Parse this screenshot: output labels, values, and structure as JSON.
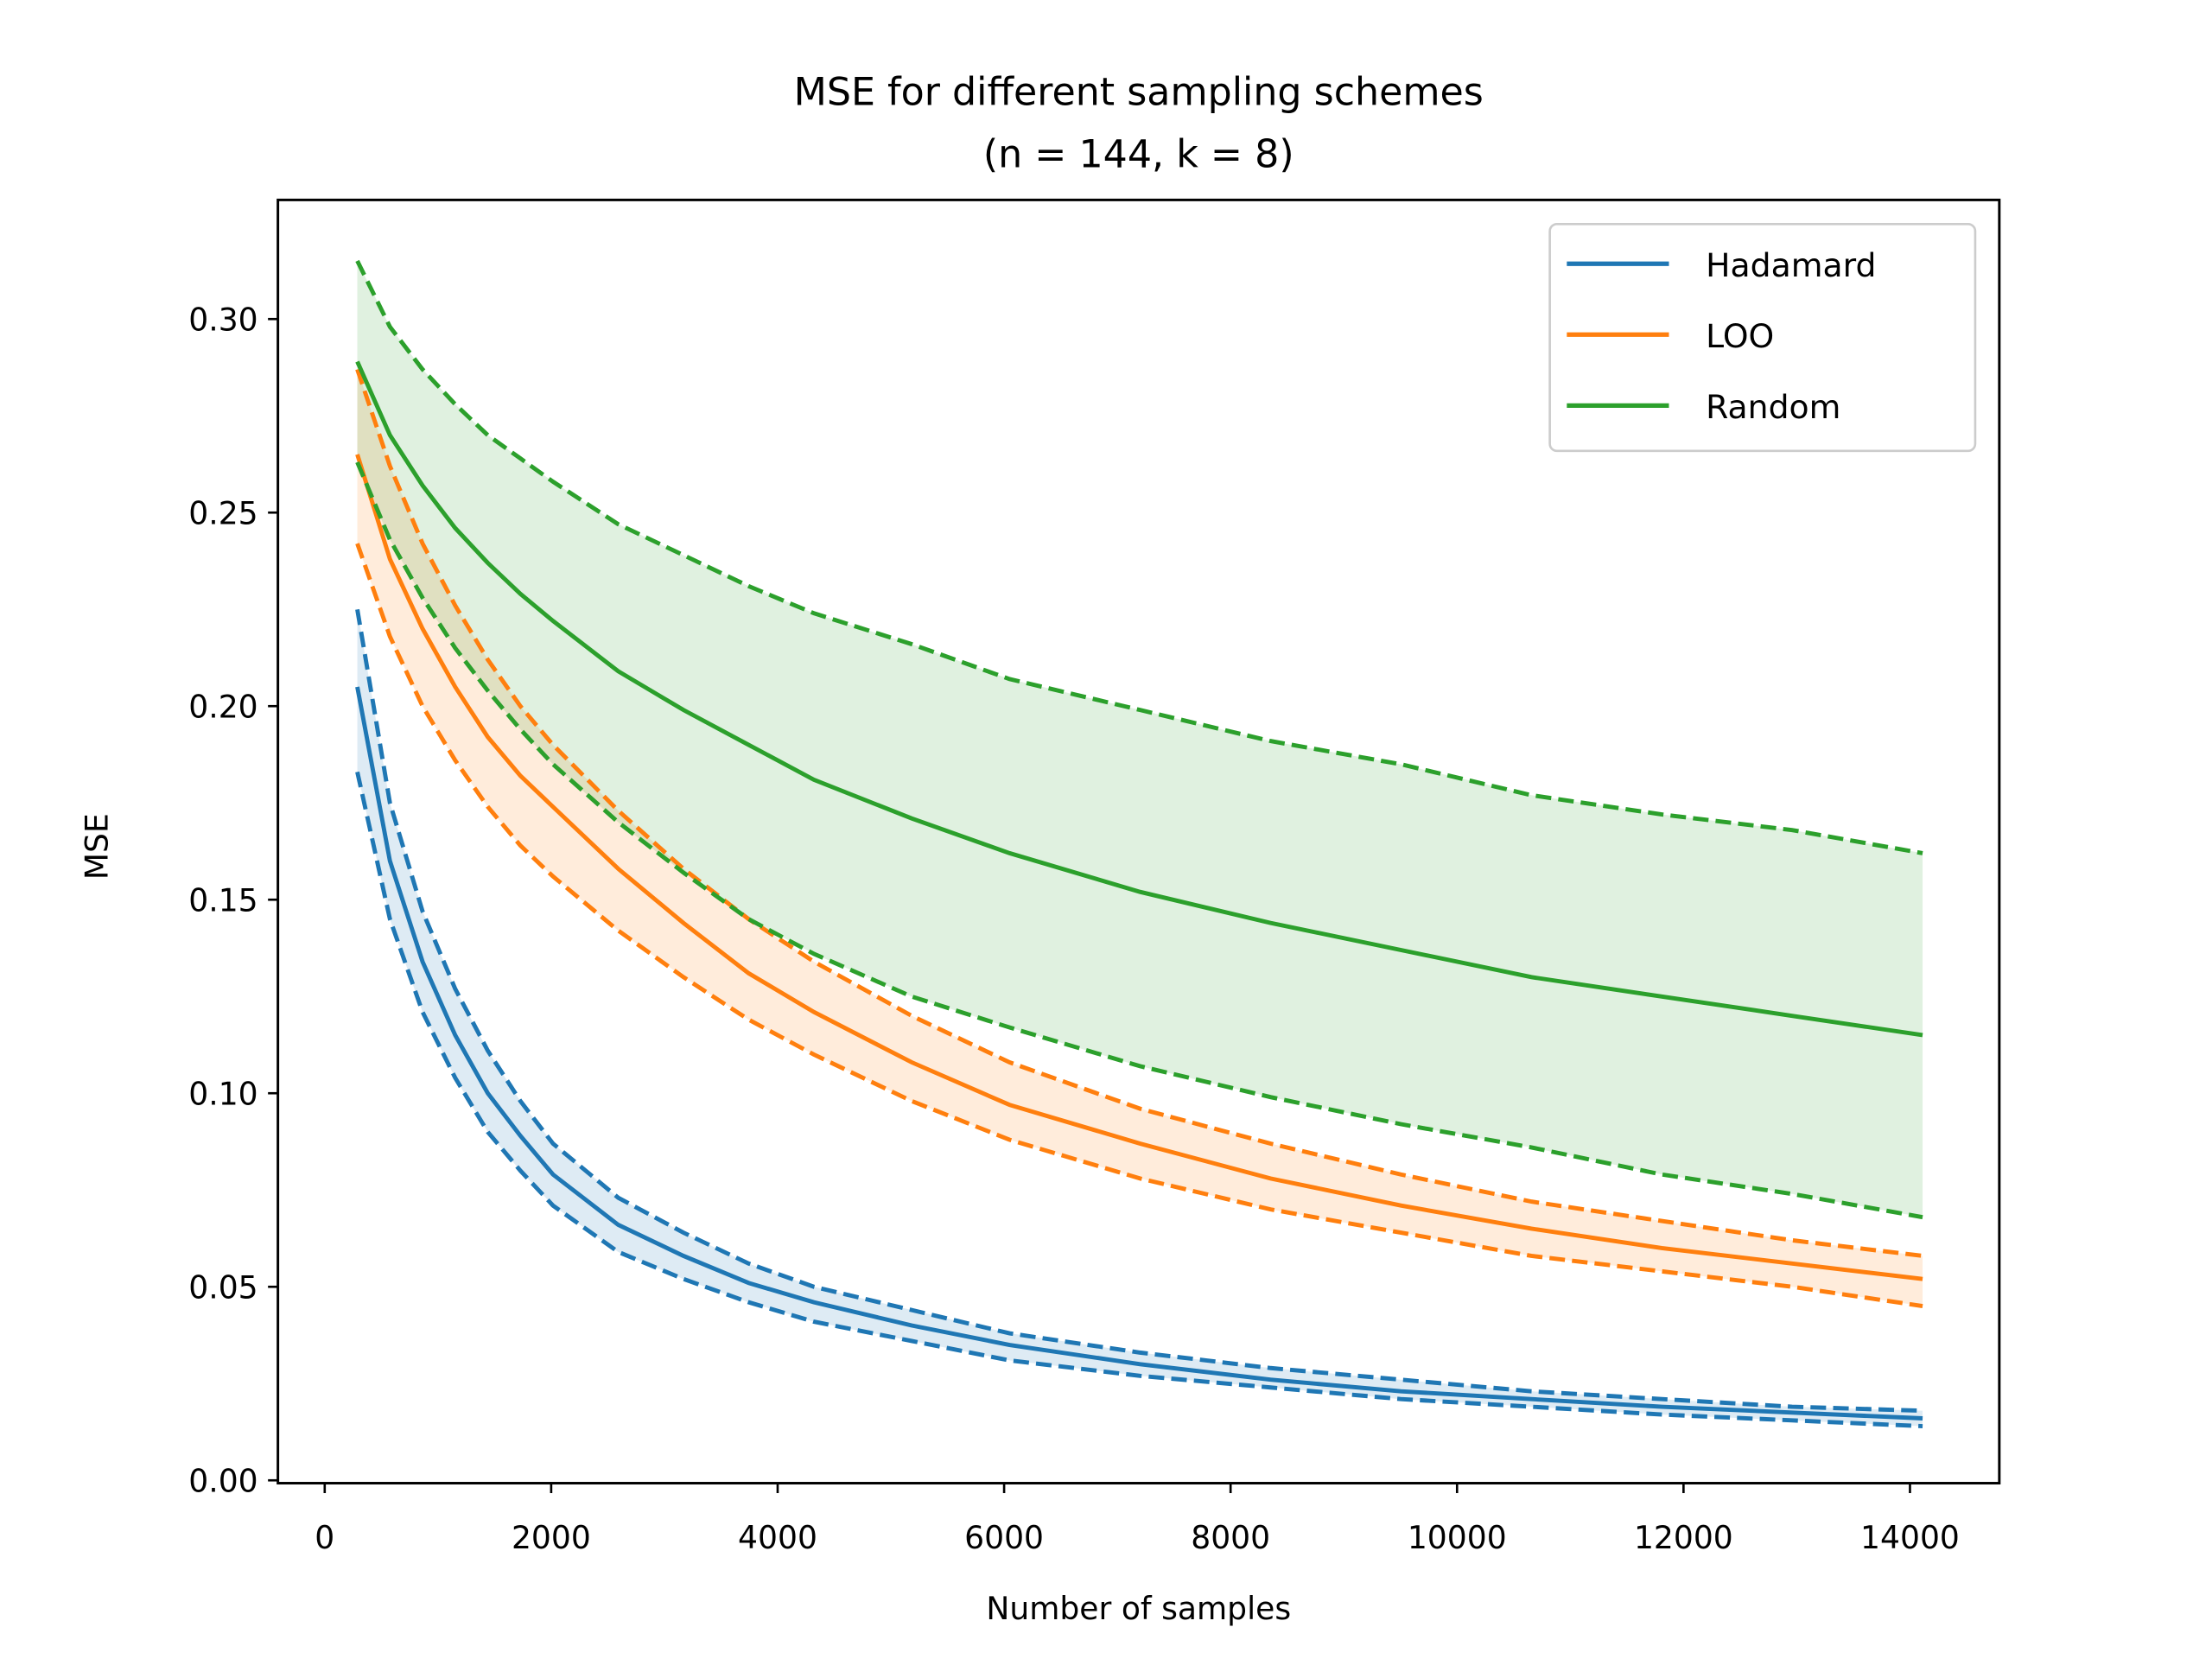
{
  "chart_data": {
    "type": "line",
    "title": "MSE for different sampling schemes",
    "subtitle": "(n = 144, k = 8)",
    "xlabel": "Number of samples",
    "ylabel": "MSE",
    "xlim": [
      -400,
      14800
    ],
    "ylim": [
      0,
      0.33
    ],
    "xticks": [
      0,
      2000,
      4000,
      6000,
      8000,
      10000,
      12000,
      14000
    ],
    "xtick_labels": [
      "0",
      "2000",
      "4000",
      "6000",
      "8000",
      "10000",
      "12000",
      "14000"
    ],
    "yticks": [
      0,
      0.05,
      0.1,
      0.15,
      0.2,
      0.25,
      0.3
    ],
    "ytick_labels": [
      "0.00",
      "0.05",
      "0.10",
      "0.15",
      "0.20",
      "0.25",
      "0.30"
    ],
    "grid": false,
    "legend_position": "top-right",
    "x": [
      288,
      576,
      864,
      1152,
      1440,
      1728,
      2016,
      2592,
      3168,
      3744,
      4320,
      5184,
      6048,
      7200,
      8352,
      9504,
      10656,
      11808,
      12960,
      14112
    ],
    "series": [
      {
        "name": "Hadamard",
        "color": "#1f77b4",
        "mean": [
          0.205,
          0.16,
          0.134,
          0.115,
          0.1,
          0.089,
          0.079,
          0.066,
          0.058,
          0.051,
          0.046,
          0.04,
          0.035,
          0.03,
          0.026,
          0.023,
          0.021,
          0.019,
          0.0175,
          0.016
        ],
        "upper": [
          0.225,
          0.175,
          0.147,
          0.127,
          0.111,
          0.098,
          0.087,
          0.073,
          0.064,
          0.056,
          0.05,
          0.044,
          0.038,
          0.033,
          0.029,
          0.026,
          0.023,
          0.021,
          0.019,
          0.018
        ],
        "lower": [
          0.183,
          0.145,
          0.121,
          0.104,
          0.09,
          0.08,
          0.071,
          0.059,
          0.052,
          0.046,
          0.041,
          0.036,
          0.031,
          0.027,
          0.024,
          0.021,
          0.019,
          0.017,
          0.0155,
          0.014
        ]
      },
      {
        "name": "LOO",
        "color": "#ff7f0e",
        "mean": [
          0.265,
          0.238,
          0.22,
          0.205,
          0.192,
          0.182,
          0.174,
          0.158,
          0.144,
          0.131,
          0.121,
          0.108,
          0.097,
          0.087,
          0.078,
          0.071,
          0.065,
          0.06,
          0.056,
          0.052
        ],
        "upper": [
          0.287,
          0.262,
          0.242,
          0.226,
          0.212,
          0.2,
          0.19,
          0.173,
          0.158,
          0.145,
          0.134,
          0.12,
          0.108,
          0.096,
          0.087,
          0.079,
          0.072,
          0.067,
          0.062,
          0.058
        ],
        "lower": [
          0.242,
          0.218,
          0.2,
          0.186,
          0.174,
          0.164,
          0.156,
          0.142,
          0.13,
          0.119,
          0.11,
          0.098,
          0.088,
          0.078,
          0.07,
          0.064,
          0.058,
          0.054,
          0.05,
          0.045
        ]
      },
      {
        "name": "Random",
        "color": "#2ca02c",
        "mean": [
          0.289,
          0.27,
          0.257,
          0.246,
          0.237,
          0.229,
          0.222,
          0.209,
          0.199,
          0.19,
          0.181,
          0.171,
          0.162,
          0.152,
          0.144,
          0.137,
          0.13,
          0.125,
          0.12,
          0.115
        ],
        "upper": [
          0.315,
          0.298,
          0.287,
          0.278,
          0.27,
          0.264,
          0.258,
          0.247,
          0.239,
          0.231,
          0.224,
          0.216,
          0.207,
          0.199,
          0.191,
          0.185,
          0.177,
          0.172,
          0.168,
          0.162
        ],
        "lower": [
          0.263,
          0.243,
          0.228,
          0.215,
          0.204,
          0.194,
          0.185,
          0.17,
          0.157,
          0.145,
          0.136,
          0.125,
          0.117,
          0.107,
          0.099,
          0.092,
          0.086,
          0.079,
          0.074,
          0.068
        ]
      }
    ]
  }
}
